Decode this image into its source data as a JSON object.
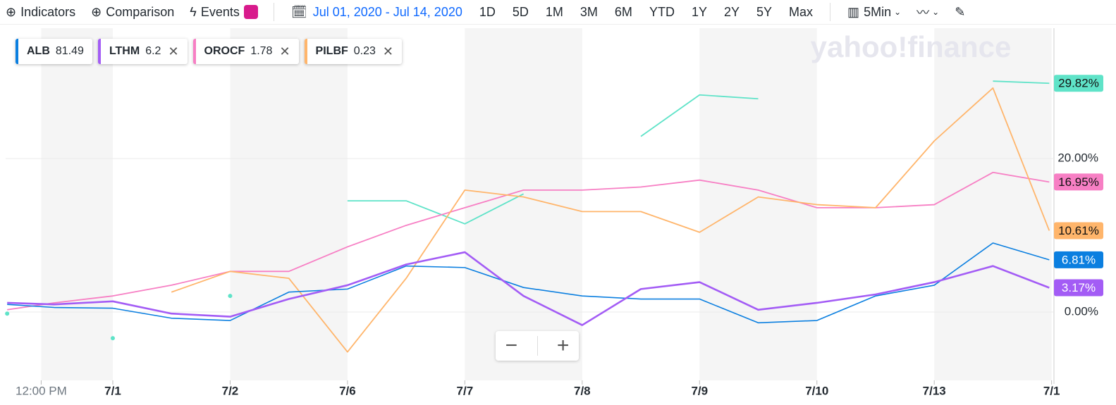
{
  "toolbar": {
    "indicators": "Indicators",
    "comparison": "Comparison",
    "events": "Events",
    "date_range": "Jul 01, 2020 - Jul 14, 2020",
    "ranges": [
      "1D",
      "5D",
      "1M",
      "3M",
      "6M",
      "YTD",
      "1Y",
      "2Y",
      "5Y",
      "Max"
    ],
    "interval": "5Min"
  },
  "chart_data": {
    "type": "line",
    "watermark": "yahoo!finance",
    "x": [
      0.1,
      0.5,
      1,
      1.5,
      2,
      2.5,
      3,
      3.5,
      4,
      4.5,
      5,
      5.5,
      6,
      6.5,
      7,
      7.5,
      8,
      8.5,
      8.98
    ],
    "xlim": [
      0.087,
      9.02
    ],
    "xticks": [
      {
        "value": 0.39,
        "label": "12:00 PM"
      },
      {
        "value": 1,
        "label": "7/1"
      },
      {
        "value": 2,
        "label": "7/2"
      },
      {
        "value": 3,
        "label": "7/6"
      },
      {
        "value": 4,
        "label": "7/7"
      },
      {
        "value": 5,
        "label": "7/8"
      },
      {
        "value": 6,
        "label": "7/9"
      },
      {
        "value": 7,
        "label": "7/10"
      },
      {
        "value": 8,
        "label": "7/13"
      },
      {
        "value": 9,
        "label": "7/1"
      }
    ],
    "ylim": [
      -8.9,
      37
    ],
    "yticks": [
      {
        "value": 0,
        "label": "0.00%"
      },
      {
        "value": 20,
        "label": "20.00%"
      }
    ],
    "grid": true,
    "series": [
      {
        "color": "#5fe3c8",
        "values": [
          -0.2,
          null,
          -3.4,
          null,
          2.1,
          null,
          14.5,
          14.5,
          11.5,
          15.4,
          null,
          22.9,
          28.3,
          27.8,
          null,
          null,
          null,
          30.1,
          29.82
        ],
        "value_labels": [
          null,
          null,
          null,
          null,
          null,
          null,
          null,
          null,
          null,
          null,
          null,
          null,
          null,
          null,
          null,
          null,
          null,
          null,
          "29.82%"
        ]
      },
      {
        "name": "OROCF",
        "price": 1.78,
        "color": "#f77fc4",
        "values": [
          0.3,
          1.2,
          2.1,
          3.5,
          5.3,
          5.3,
          8.5,
          11.3,
          13.6,
          15.9,
          15.9,
          16.3,
          17.2,
          15.9,
          13.6,
          13.6,
          14.0,
          18.2,
          16.95
        ],
        "value_labels": [
          null,
          null,
          null,
          null,
          null,
          null,
          null,
          null,
          null,
          null,
          null,
          null,
          null,
          null,
          null,
          null,
          null,
          null,
          "16.95%"
        ]
      },
      {
        "name": "PILBF",
        "price": 0.23,
        "color": "#ffb56b",
        "values": [
          null,
          null,
          null,
          2.6,
          5.3,
          4.4,
          -5.2,
          4.4,
          15.9,
          15.0,
          13.1,
          13.1,
          10.4,
          15.0,
          14.0,
          13.6,
          22.3,
          29.2,
          10.61
        ],
        "value_labels": [
          null,
          null,
          null,
          null,
          null,
          null,
          null,
          null,
          null,
          null,
          null,
          null,
          null,
          null,
          null,
          null,
          null,
          null,
          "10.61%"
        ]
      },
      {
        "name": "ALB",
        "price": 81.49,
        "color": "#0b7fe0",
        "values": [
          1.0,
          0.6,
          0.5,
          -0.8,
          -1.1,
          2.6,
          3.0,
          6.0,
          5.8,
          3.2,
          2.1,
          1.7,
          1.7,
          -1.4,
          -1.1,
          2.1,
          3.5,
          9.0,
          6.81
        ],
        "value_labels": [
          null,
          null,
          null,
          null,
          null,
          null,
          null,
          null,
          null,
          null,
          null,
          null,
          null,
          null,
          null,
          null,
          null,
          null,
          "6.81%"
        ]
      },
      {
        "name": "LTHM",
        "price": 6.2,
        "color": "#a35cf5",
        "values": [
          1.2,
          1.0,
          1.4,
          -0.2,
          -0.6,
          1.7,
          3.5,
          6.2,
          7.8,
          2.1,
          -1.7,
          3.0,
          3.9,
          0.3,
          1.2,
          2.3,
          3.9,
          6.0,
          3.17
        ],
        "value_labels": [
          null,
          null,
          null,
          null,
          null,
          null,
          null,
          null,
          null,
          null,
          null,
          null,
          null,
          null,
          null,
          null,
          null,
          null,
          "3.17%"
        ]
      }
    ],
    "legend_order": [
      3,
      4,
      1,
      2
    ]
  }
}
